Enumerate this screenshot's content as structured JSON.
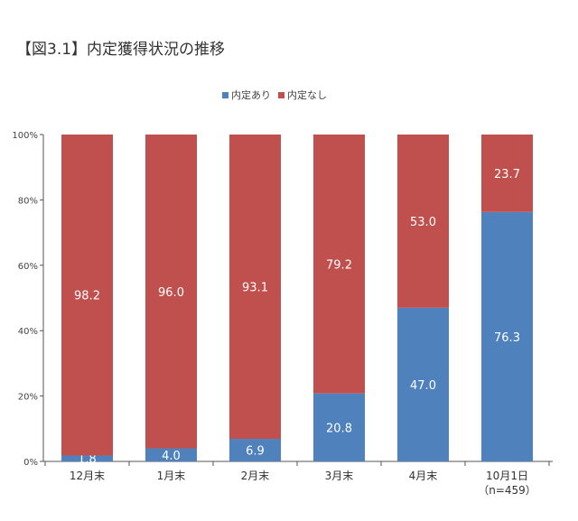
{
  "chart_data": {
    "type": "bar",
    "stacked": true,
    "title": "【図3.1】内定獲得状況の推移",
    "categories": [
      "12月末",
      "1月末",
      "2月末",
      "3月末",
      "4月末",
      "10月1日"
    ],
    "category_sublabels": [
      "",
      "",
      "",
      "",
      "",
      "（n=459）"
    ],
    "series": [
      {
        "name": "内定あり",
        "color": "#4f81bd",
        "values": [
          1.8,
          4.0,
          6.9,
          20.8,
          47.0,
          76.3
        ]
      },
      {
        "name": "内定なし",
        "color": "#c0504d",
        "values": [
          98.2,
          96.0,
          93.1,
          79.2,
          53.0,
          23.7
        ]
      }
    ],
    "yticks": [
      "0%",
      "20%",
      "40%",
      "60%",
      "80%",
      "100%"
    ],
    "ylim": [
      0,
      100
    ],
    "grid": false,
    "legend": "top-center"
  }
}
